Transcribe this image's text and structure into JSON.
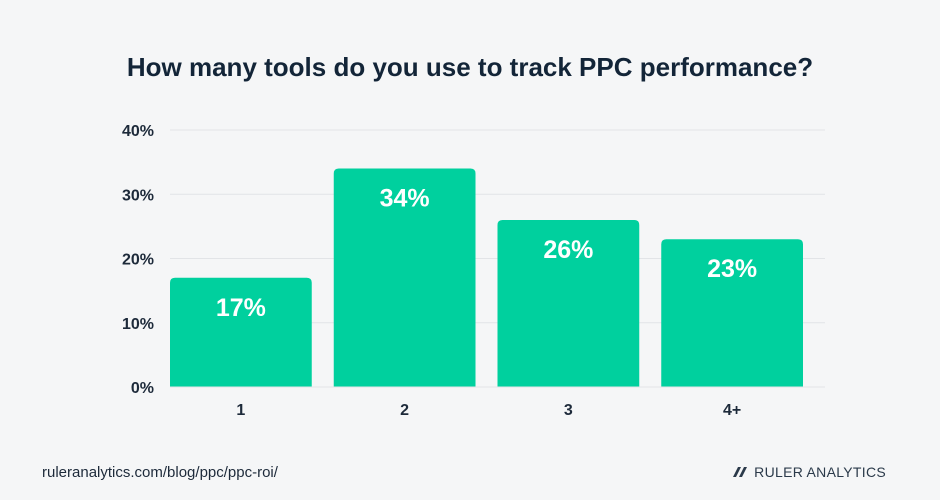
{
  "chart_data": {
    "type": "bar",
    "title": "How many tools do you use to track PPC performance?",
    "categories": [
      "1",
      "2",
      "3",
      "4+"
    ],
    "values": [
      17,
      34,
      26,
      23
    ],
    "value_labels": [
      "17%",
      "34%",
      "26%",
      "23%"
    ],
    "ylim": [
      0,
      40
    ],
    "yticks": [
      "0%",
      "10%",
      "20%",
      "30%",
      "40%"
    ],
    "ytick_values": [
      0,
      10,
      20,
      30,
      40
    ],
    "xlabel": "",
    "ylabel": "",
    "grid": true,
    "bar_color": "#00d09e"
  },
  "footer": {
    "source_url": "ruleranalytics.com/blog/ppc/ppc-roi/",
    "brand": "RULER ANALYTICS"
  },
  "colors": {
    "background": "#f5f6f7",
    "gridline": "#e2e4e7",
    "text": "#1d2a3a",
    "bar_label": "#ffffff"
  },
  "icons": {
    "brand_logo": "ruler-logo-icon"
  }
}
